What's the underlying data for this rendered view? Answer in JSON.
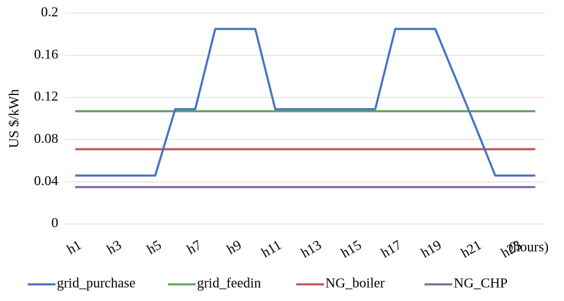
{
  "chart_data": {
    "type": "line",
    "y_label": "US $/kWh",
    "x_annotation": "(hours)",
    "categories": [
      "h1",
      null,
      "h3",
      null,
      "h5",
      null,
      "h7",
      null,
      "h9",
      null,
      "h11",
      null,
      "h13",
      null,
      "h15",
      null,
      "h17",
      null,
      "h19",
      null,
      "h21",
      null,
      "h23",
      null
    ],
    "series": [
      {
        "name": "grid_purchase",
        "color": "#4472c4",
        "values": [
          0.046,
          0.046,
          0.046,
          0.046,
          0.046,
          0.109,
          0.109,
          0.185,
          0.185,
          0.185,
          0.109,
          0.109,
          0.109,
          0.109,
          0.109,
          0.109,
          0.185,
          0.185,
          0.185,
          0.139,
          0.093,
          0.046,
          0.046,
          0.046
        ]
      },
      {
        "name": "grid_feedin",
        "color": "#5ba55b",
        "values": [
          0.107,
          0.107,
          0.107,
          0.107,
          0.107,
          0.107,
          0.107,
          0.107,
          0.107,
          0.107,
          0.107,
          0.107,
          0.107,
          0.107,
          0.107,
          0.107,
          0.107,
          0.107,
          0.107,
          0.107,
          0.107,
          0.107,
          0.107,
          0.107
        ]
      },
      {
        "name": "NG_boiler",
        "color": "#c0504d",
        "values": [
          0.071,
          0.071,
          0.071,
          0.071,
          0.071,
          0.071,
          0.071,
          0.071,
          0.071,
          0.071,
          0.071,
          0.071,
          0.071,
          0.071,
          0.071,
          0.071,
          0.071,
          0.071,
          0.071,
          0.071,
          0.071,
          0.071,
          0.071,
          0.071
        ]
      },
      {
        "name": "NG_CHP",
        "color": "#8064a2",
        "values": [
          0.035,
          0.035,
          0.035,
          0.035,
          0.035,
          0.035,
          0.035,
          0.035,
          0.035,
          0.035,
          0.035,
          0.035,
          0.035,
          0.035,
          0.035,
          0.035,
          0.035,
          0.035,
          0.035,
          0.035,
          0.035,
          0.035,
          0.035,
          0.035
        ]
      }
    ],
    "ylim": [
      0,
      0.2
    ],
    "yticks": [
      0,
      0.04,
      0.08,
      0.12,
      0.16,
      0.2
    ],
    "grid": true,
    "legend": "bottom"
  }
}
